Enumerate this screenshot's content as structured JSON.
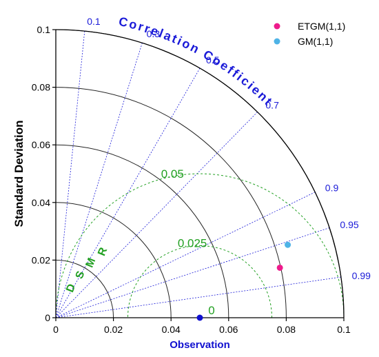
{
  "chart_data": {
    "type": "scatter",
    "subtype": "taylor-diagram",
    "ylabel": "Standard Deviation",
    "xlabel": "Observation",
    "std_max": 0.1,
    "std_ticks": [
      0,
      0.02,
      0.04,
      0.06,
      0.08,
      0.1
    ],
    "std_tick_labels": [
      "0",
      "0.02",
      "0.04",
      "0.06",
      "0.08",
      "0.1"
    ],
    "correlation_title": "Correlation Coefficient",
    "correlation_ticks": [
      0.1,
      0.3,
      0.5,
      0.7,
      0.9,
      0.95,
      0.99
    ],
    "correlation_tick_labels": [
      "0.1",
      "0.3",
      "0.5",
      "0.7",
      "0.9",
      "0.95",
      "0.99"
    ],
    "rmsd_title": "RMSD",
    "rmsd_contours": [
      0.025,
      0.05
    ],
    "rmsd_contour_labels": [
      "0.025",
      "0.05"
    ],
    "rmsd_zero_label": "0",
    "observation": {
      "std": 0.05,
      "correlation": 1.0
    },
    "series": [
      {
        "name": "ETGM(1,1)",
        "std": 0.0797,
        "correlation": 0.976,
        "color": "#ee1b8c"
      },
      {
        "name": "GM(1,1)",
        "std": 0.0844,
        "correlation": 0.954,
        "color": "#4eb3e6"
      }
    ],
    "legend_position": "top-right",
    "colors": {
      "correlation": "#1a1ad8",
      "rmsd": "#22a022",
      "std_arc": "#222222",
      "observation": "#1010d0"
    }
  }
}
